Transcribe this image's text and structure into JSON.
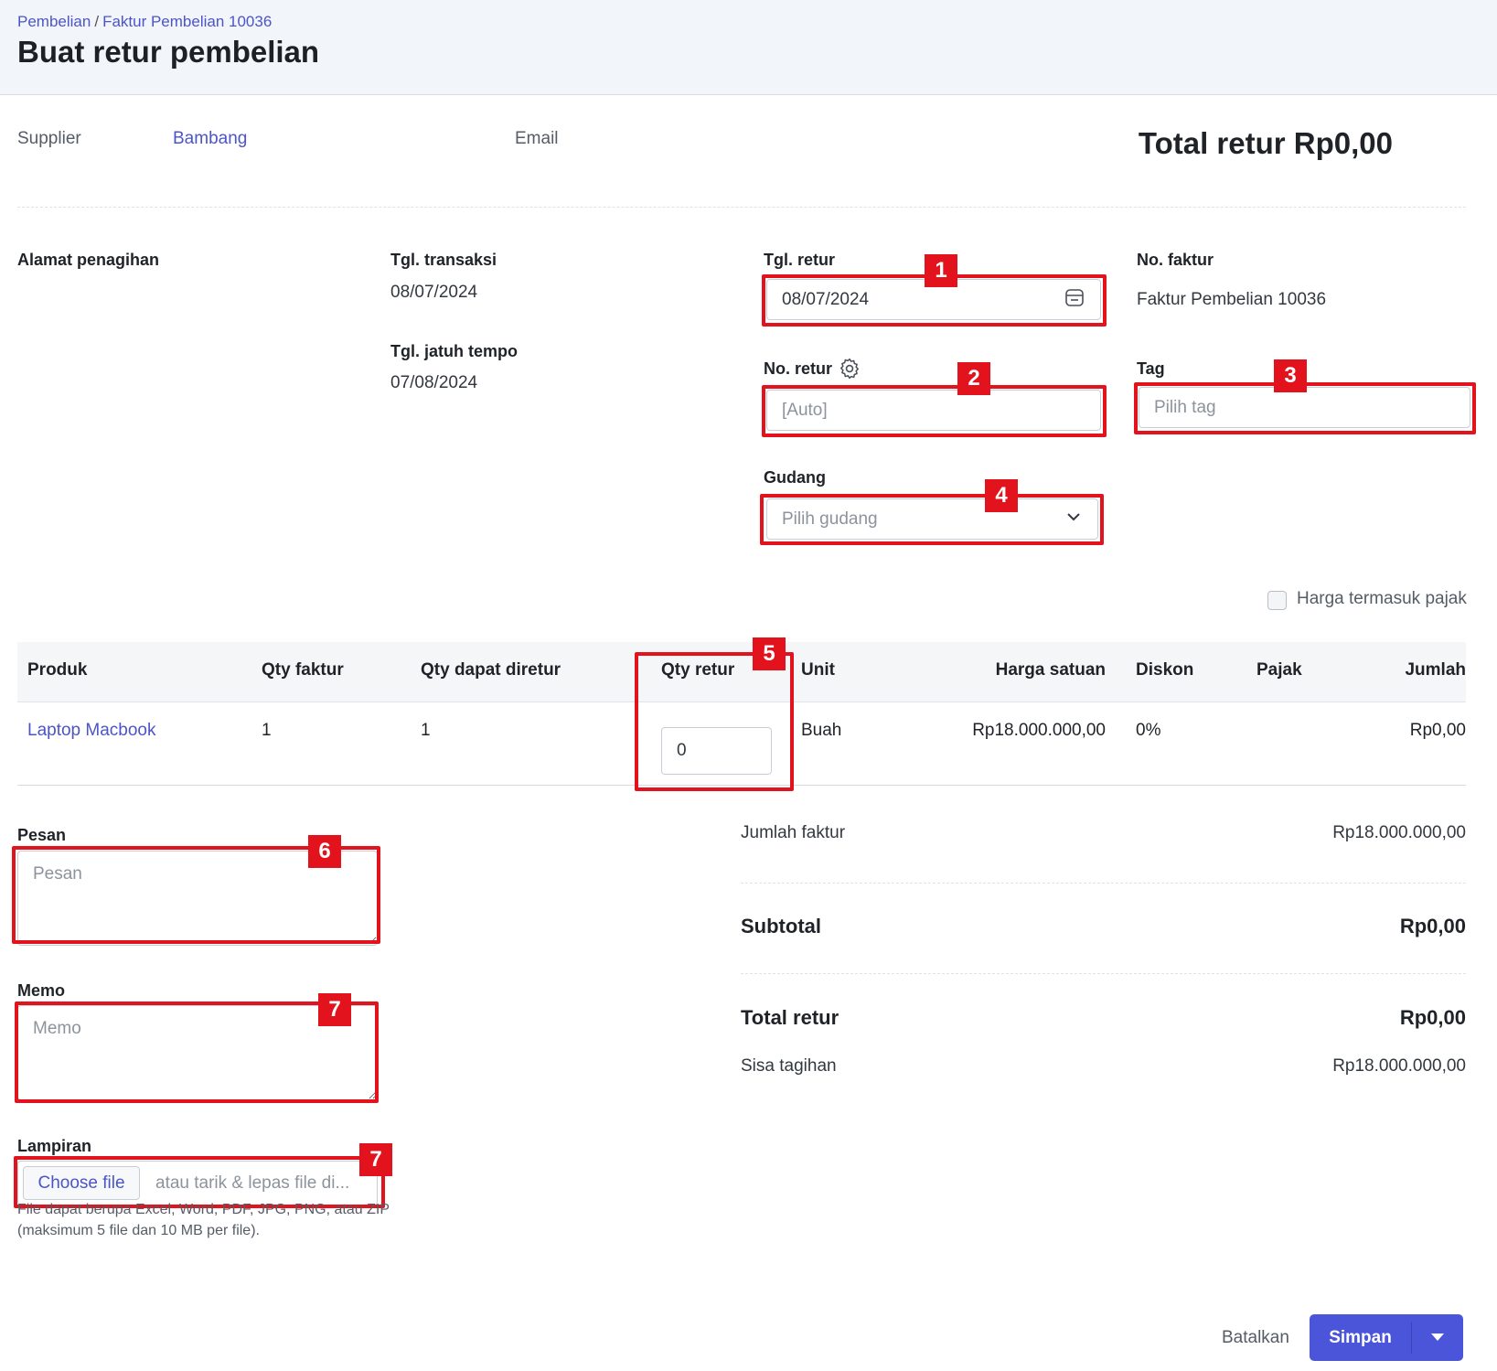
{
  "breadcrumb": {
    "parent": "Pembelian",
    "separator": "/",
    "current": "Faktur Pembelian 10036"
  },
  "page_title": "Buat retur pembelian",
  "supplier": {
    "label": "Supplier",
    "value": "Bambang"
  },
  "email": {
    "label": "Email",
    "value": ""
  },
  "total_top": "Total retur Rp0,00",
  "billing": {
    "label": "Alamat penagihan"
  },
  "transaction_date": {
    "label": "Tgl. transaksi",
    "value": "08/07/2024"
  },
  "due_date": {
    "label": "Tgl. jatuh tempo",
    "value": "07/08/2024"
  },
  "return_date": {
    "label": "Tgl. retur",
    "value": "08/07/2024"
  },
  "invoice_no": {
    "label": "No. faktur",
    "value": "Faktur Pembelian 10036"
  },
  "return_no": {
    "label": "No. retur",
    "placeholder": "[Auto]"
  },
  "tag": {
    "label": "Tag",
    "placeholder": "Pilih tag"
  },
  "warehouse": {
    "label": "Gudang",
    "placeholder": "Pilih gudang"
  },
  "tax_inclusive": {
    "label": "Harga termasuk pajak",
    "checked": false
  },
  "table": {
    "headers": [
      "Produk",
      "Qty faktur",
      "Qty dapat diretur",
      "Qty retur",
      "Unit",
      "Harga satuan",
      "Diskon",
      "Pajak",
      "Jumlah"
    ],
    "rows": [
      {
        "product": "Laptop Macbook",
        "qty_invoice": "1",
        "qty_returnable": "1",
        "qty_return": "0",
        "unit": "Buah",
        "unit_price": "Rp18.000.000,00",
        "discount": "0%",
        "tax": "",
        "amount": "Rp0,00"
      }
    ]
  },
  "message": {
    "label": "Pesan",
    "placeholder": "Pesan"
  },
  "memo": {
    "label": "Memo",
    "placeholder": "Memo"
  },
  "attachment": {
    "label": "Lampiran",
    "button": "Choose file",
    "drop_text": "atau tarik & lepas file di...",
    "hint_line1": "File dapat berupa Excel, Word, PDF, JPG, PNG, atau ZIP",
    "hint_line2": "(maksimum 5 file dan 10 MB per file)."
  },
  "summary": {
    "invoice_total_label": "Jumlah faktur",
    "invoice_total_value": "Rp18.000.000,00",
    "subtotal_label": "Subtotal",
    "subtotal_value": "Rp0,00",
    "return_total_label": "Total retur",
    "return_total_value": "Rp0,00",
    "remaining_label": "Sisa tagihan",
    "remaining_value": "Rp18.000.000,00"
  },
  "actions": {
    "cancel": "Batalkan",
    "save": "Simpan"
  },
  "annotations": [
    "1",
    "2",
    "3",
    "4",
    "5",
    "6",
    "7",
    "7"
  ],
  "colors": {
    "accent": "#4b55d9",
    "link": "#4b55c9",
    "highlight": "#e3131e",
    "header_bg": "#f2f5fa"
  },
  "icons": {
    "calendar": "calendar-icon",
    "gear": "gear-icon",
    "chevron": "chevron-down-icon",
    "caret": "caret-down-icon"
  }
}
